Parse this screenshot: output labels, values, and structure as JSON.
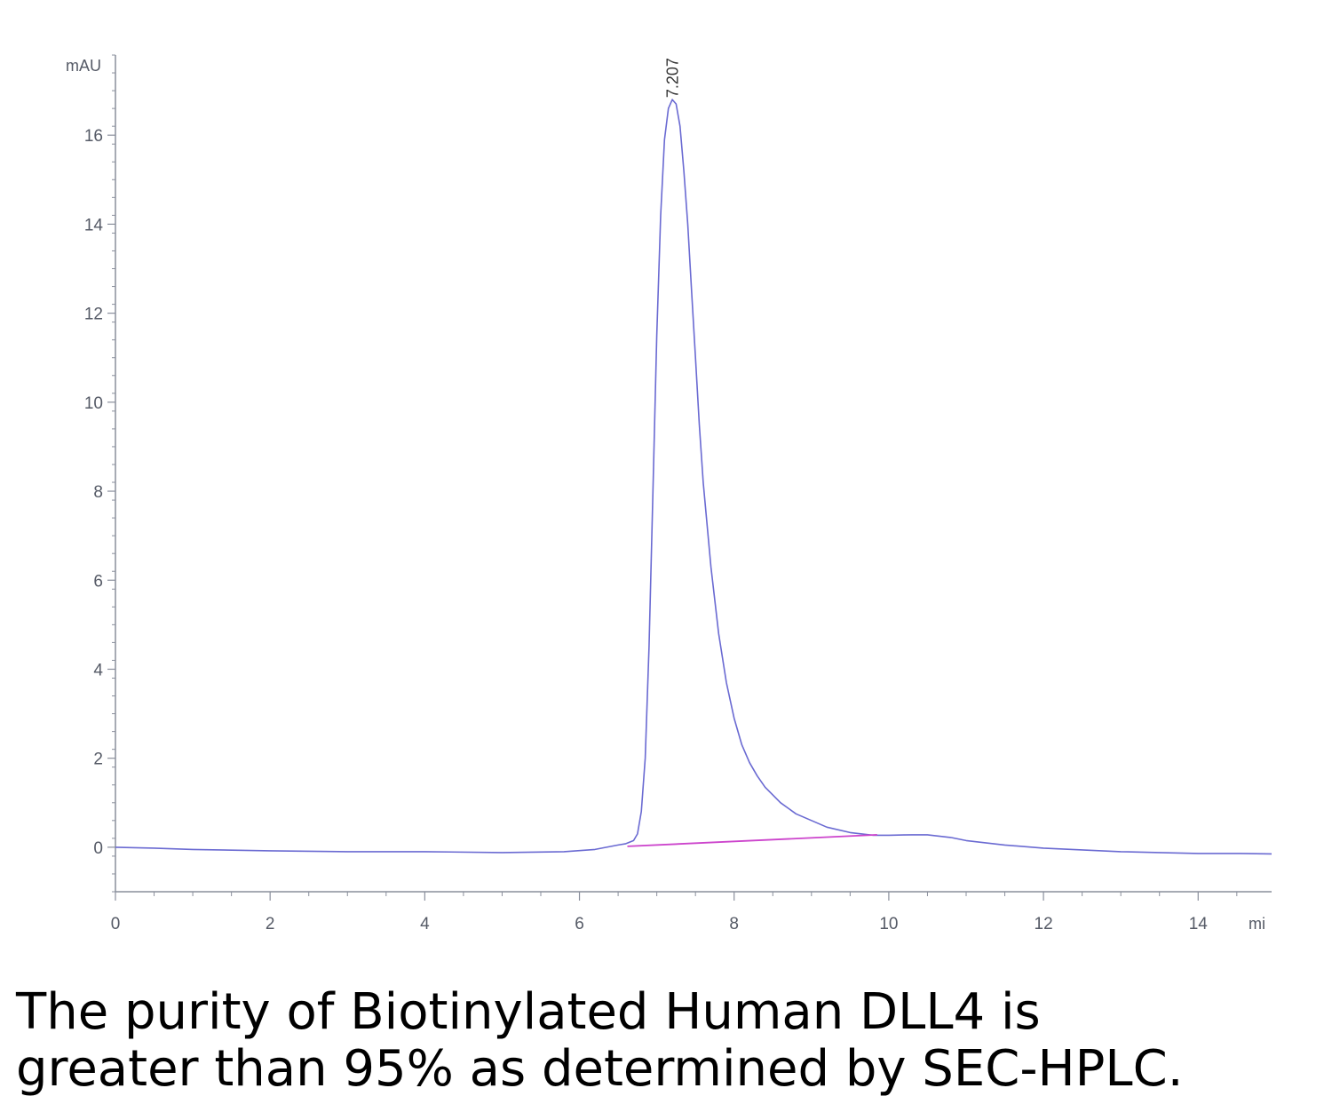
{
  "chart_data": {
    "type": "line",
    "title": "",
    "xlabel": "",
    "ylabel": "",
    "y_unit": "mAU",
    "x_unit": "mi",
    "xlim": [
      0,
      14.95
    ],
    "ylim": [
      -1,
      17.8
    ],
    "x_ticks": [
      0,
      2,
      4,
      6,
      8,
      10,
      12,
      14
    ],
    "y_ticks": [
      0,
      2,
      4,
      6,
      8,
      10,
      12,
      14,
      16
    ],
    "x_tick_labels": [
      "0",
      "2",
      "4",
      "6",
      "8",
      "10",
      "12",
      "14"
    ],
    "y_tick_labels": [
      "0",
      "2",
      "4",
      "6",
      "8",
      "10",
      "12",
      "14",
      "16"
    ],
    "grid": false,
    "series": [
      {
        "role": "signal",
        "color": "#6a6ad2",
        "x": [
          0,
          0.5,
          1.0,
          2.0,
          3.0,
          4.0,
          5.0,
          5.8,
          6.2,
          6.5,
          6.6,
          6.7,
          6.75,
          6.8,
          6.85,
          6.9,
          6.95,
          7.0,
          7.05,
          7.1,
          7.15,
          7.2,
          7.25,
          7.3,
          7.35,
          7.4,
          7.45,
          7.5,
          7.55,
          7.6,
          7.7,
          7.8,
          7.9,
          8.0,
          8.1,
          8.2,
          8.3,
          8.4,
          8.6,
          8.8,
          9.0,
          9.2,
          9.5,
          9.8,
          10.0,
          10.3,
          10.5,
          10.8,
          11.0,
          11.5,
          12.0,
          12.5,
          13.0,
          13.5,
          14.0,
          14.5,
          14.95
        ],
        "y": [
          0.0,
          -0.02,
          -0.05,
          -0.08,
          -0.1,
          -0.1,
          -0.12,
          -0.1,
          -0.05,
          0.05,
          0.08,
          0.15,
          0.3,
          0.8,
          2.0,
          4.5,
          8.0,
          11.5,
          14.2,
          15.9,
          16.6,
          16.8,
          16.7,
          16.2,
          15.2,
          14.0,
          12.5,
          11.0,
          9.5,
          8.2,
          6.3,
          4.8,
          3.7,
          2.9,
          2.3,
          1.9,
          1.6,
          1.35,
          1.0,
          0.75,
          0.6,
          0.45,
          0.33,
          0.27,
          0.27,
          0.28,
          0.28,
          0.22,
          0.15,
          0.05,
          -0.02,
          -0.06,
          -0.1,
          -0.12,
          -0.14,
          -0.14,
          -0.15
        ]
      },
      {
        "role": "integration-baseline",
        "color": "#cc44cc",
        "x": [
          6.62,
          9.85
        ],
        "y": [
          0.02,
          0.28
        ]
      }
    ],
    "annotations": [
      {
        "text": "7.207",
        "x": 7.207,
        "y": 16.8
      }
    ]
  },
  "caption": {
    "line1": "The purity of Biotinylated Human DLL4 is",
    "line2": "greater than 95% as determined by SEC-HPLC."
  }
}
